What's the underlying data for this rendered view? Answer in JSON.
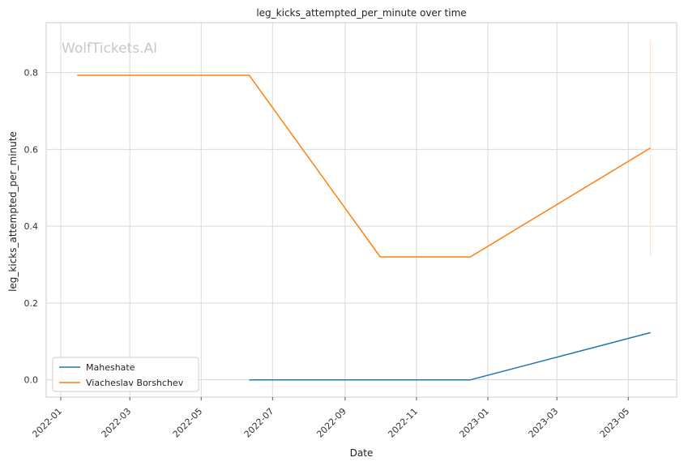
{
  "watermark": "WolfTickets.AI",
  "chart_data": {
    "type": "line",
    "title": "leg_kicks_attempted_per_minute over time",
    "xlabel": "Date",
    "ylabel": "leg_kicks_attempted_per_minute",
    "x_ticks": [
      "2022-01",
      "2022-03",
      "2022-05",
      "2022-07",
      "2022-09",
      "2022-11",
      "2023-01",
      "2023-03",
      "2023-05"
    ],
    "y_ticks": [
      "0.0",
      "0.2",
      "0.4",
      "0.6",
      "0.8"
    ],
    "ylim": [
      -0.045,
      0.93
    ],
    "grid": true,
    "legend_position": "lower-left",
    "series": [
      {
        "name": "Maheshate",
        "color": "#1f77b4",
        "points": [
          {
            "x": "2022-06-11",
            "y": 0.0
          },
          {
            "x": "2022-12-17",
            "y": 0.0
          },
          {
            "x": "2023-05-20",
            "y": 0.123
          }
        ]
      },
      {
        "name": "Viacheslav Borshchev",
        "color": "#ff7f0e",
        "points": [
          {
            "x": "2022-01-15",
            "y": 0.793
          },
          {
            "x": "2022-06-11",
            "y": 0.793
          },
          {
            "x": "2022-10-01",
            "y": 0.32
          },
          {
            "x": "2022-12-17",
            "y": 0.32
          },
          {
            "x": "2023-05-20",
            "y": 0.604
          }
        ]
      }
    ],
    "annotation_vline": {
      "x": "2023-05-20",
      "y_range": [
        0.32,
        0.885
      ],
      "color": "#fbe3cf"
    }
  }
}
